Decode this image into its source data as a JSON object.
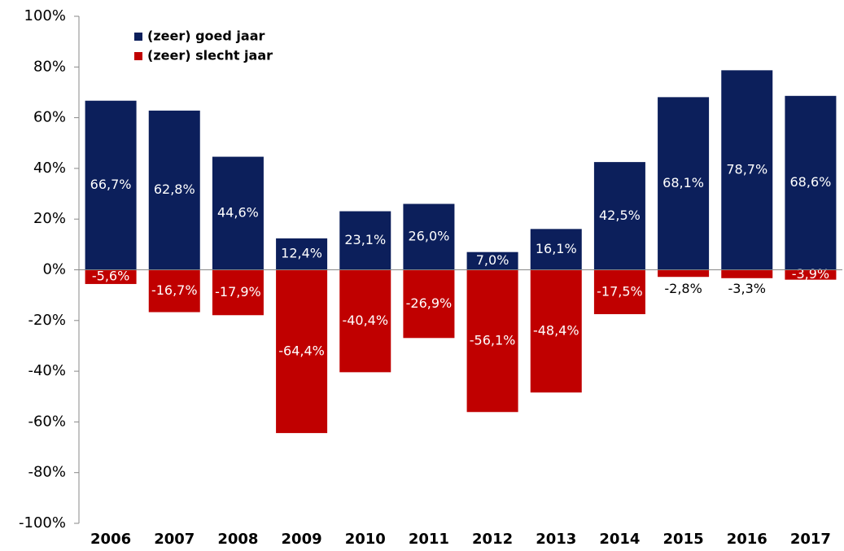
{
  "chart_data": {
    "type": "bar",
    "categories": [
      "2006",
      "2007",
      "2008",
      "2009",
      "2010",
      "2011",
      "2012",
      "2013",
      "2014",
      "2015",
      "2016",
      "2017"
    ],
    "series": [
      {
        "name": "(zeer) goed jaar",
        "color": "#0c1f5b",
        "values": [
          66.7,
          62.8,
          44.6,
          12.4,
          23.1,
          26.0,
          7.0,
          16.1,
          42.5,
          68.1,
          78.7,
          68.6
        ],
        "value_labels": [
          "66,7%",
          "62,8%",
          "44,6%",
          "12,4%",
          "23,1%",
          "26,0%",
          "7,0%",
          "16,1%",
          "42,5%",
          "68,1%",
          "78,7%",
          "68,6%"
        ]
      },
      {
        "name": "(zeer) slecht jaar",
        "color": "#c00000",
        "values": [
          -5.6,
          -16.7,
          -17.9,
          -64.4,
          -40.4,
          -26.9,
          -56.1,
          -48.4,
          -17.5,
          -2.8,
          -3.3,
          -3.9
        ],
        "value_labels": [
          "-5,6%",
          "-16,7%",
          "-17,9%",
          "-64,4%",
          "-40,4%",
          "-26,9%",
          "-56,1%",
          "-48,4%",
          "-17,5%",
          "-2,8%",
          "-3,3%",
          "-3,9%"
        ]
      }
    ],
    "ylim": [
      -100,
      100
    ],
    "yticks": [
      {
        "value": -100,
        "label": "-100%"
      },
      {
        "value": -80,
        "label": "-80%"
      },
      {
        "value": -60,
        "label": "-60%"
      },
      {
        "value": -40,
        "label": "-40%"
      },
      {
        "value": -20,
        "label": "-20%"
      },
      {
        "value": 0,
        "label": "0%"
      },
      {
        "value": 20,
        "label": "20%"
      },
      {
        "value": 40,
        "label": "40%"
      },
      {
        "value": 60,
        "label": "60%"
      },
      {
        "value": 80,
        "label": "80%"
      },
      {
        "value": 100,
        "label": "100%"
      }
    ],
    "grid": false,
    "legend": "upper left"
  }
}
